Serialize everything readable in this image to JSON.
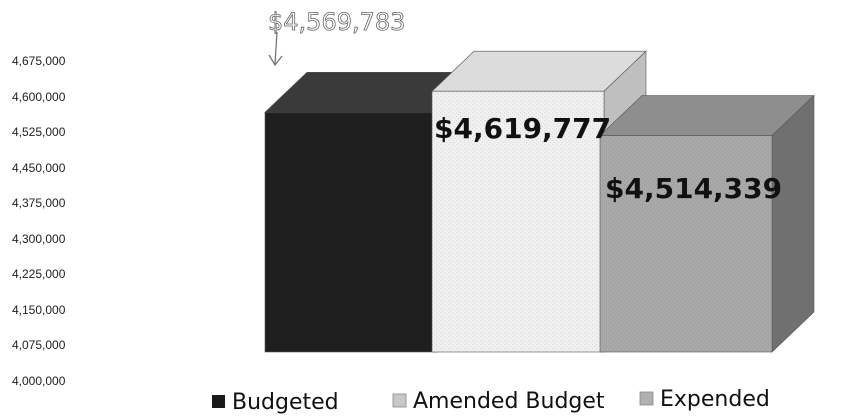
{
  "chart_data": {
    "type": "bar",
    "categories": [
      "Budgeted",
      "Amended Budget",
      "Expended"
    ],
    "values": [
      4569783,
      4619777,
      4514339
    ],
    "data_labels": [
      "",
      "$4,619,777",
      "$4,514,339"
    ],
    "annotation": "$4,569,783",
    "y_ticks": [
      "4,000,000",
      "4,075,000",
      "4,150,000",
      "4,225,000",
      "4,300,000",
      "4,375,000",
      "4,450,000",
      "4,525,000",
      "4,600,000",
      "4,675,000"
    ],
    "ylim": [
      4000000,
      4675000
    ],
    "legend": [
      {
        "name": "Budgeted",
        "color": "#1a1a1a"
      },
      {
        "name": "Amended Budget",
        "color": "#e8e8e8"
      },
      {
        "name": "Expended",
        "color": "#a8a8a8"
      }
    ],
    "legend_position": "bottom",
    "three_d": true,
    "grid": false
  }
}
